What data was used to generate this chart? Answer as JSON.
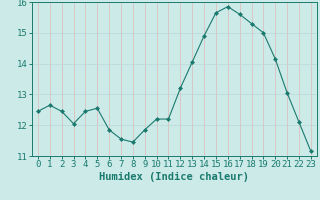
{
  "x": [
    0,
    1,
    2,
    3,
    4,
    5,
    6,
    7,
    8,
    9,
    10,
    11,
    12,
    13,
    14,
    15,
    16,
    17,
    18,
    19,
    20,
    21,
    22,
    23
  ],
  "y": [
    12.45,
    12.65,
    12.45,
    12.05,
    12.45,
    12.55,
    11.85,
    11.55,
    11.45,
    11.85,
    12.2,
    12.2,
    13.2,
    14.05,
    14.9,
    15.65,
    15.85,
    15.6,
    15.3,
    15.0,
    14.15,
    13.05,
    12.1,
    11.15
  ],
  "line_color": "#1a7a6e",
  "marker_color": "#1a7a6e",
  "bg_color": "#cceae8",
  "grid_color_major": "#b8d8d6",
  "grid_color_minor": "#e0b8b8",
  "axes_color": "#1a7a6e",
  "xlabel": "Humidex (Indice chaleur)",
  "ylim": [
    11,
    16
  ],
  "xlim": [
    -0.5,
    23.5
  ],
  "yticks": [
    11,
    12,
    13,
    14,
    15,
    16
  ],
  "xticks": [
    0,
    1,
    2,
    3,
    4,
    5,
    6,
    7,
    8,
    9,
    10,
    11,
    12,
    13,
    14,
    15,
    16,
    17,
    18,
    19,
    20,
    21,
    22,
    23
  ],
  "tick_fontsize": 6.5,
  "label_fontsize": 7.5
}
